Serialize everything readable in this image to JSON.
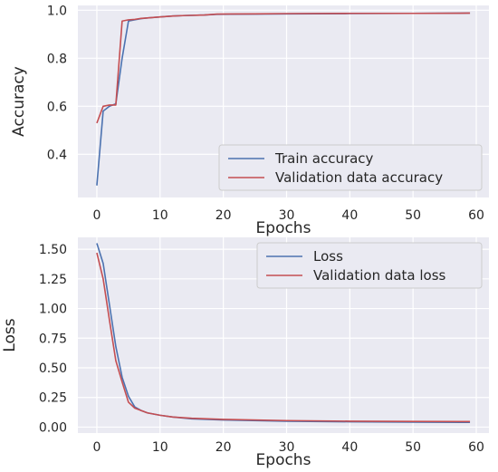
{
  "chart_data": [
    {
      "type": "line",
      "xlabel": "Epochs",
      "ylabel": "Accuracy",
      "xlim": [
        -3,
        62
      ],
      "ylim": [
        0.22,
        1.02
      ],
      "xticks": [
        0,
        10,
        20,
        30,
        40,
        50,
        60
      ],
      "yticks": [
        0.4,
        0.6,
        0.8,
        1.0
      ],
      "ytick_labels": [
        "0.4",
        "0.6",
        "0.8",
        "1.0"
      ],
      "grid": true,
      "legend_position": "lower-right",
      "series": [
        {
          "name": "Train accuracy",
          "color": "#4c72b0",
          "x": [
            0,
            1,
            2,
            3,
            4,
            5,
            6,
            7,
            8,
            10,
            12,
            14,
            17,
            19,
            25,
            30,
            40,
            50,
            59
          ],
          "y": [
            0.27,
            0.58,
            0.6,
            0.61,
            0.8,
            0.955,
            0.96,
            0.965,
            0.968,
            0.972,
            0.976,
            0.978,
            0.98,
            0.983,
            0.984,
            0.985,
            0.986,
            0.987,
            0.988
          ]
        },
        {
          "name": "Validation data accuracy",
          "color": "#c44e52",
          "x": [
            0,
            1,
            2,
            3,
            4,
            5,
            6,
            7,
            8,
            10,
            12,
            14,
            17,
            19,
            25,
            30,
            40,
            50,
            59
          ],
          "y": [
            0.53,
            0.6,
            0.605,
            0.605,
            0.955,
            0.96,
            0.962,
            0.966,
            0.968,
            0.972,
            0.976,
            0.978,
            0.98,
            0.984,
            0.985,
            0.986,
            0.987,
            0.987,
            0.988
          ]
        }
      ]
    },
    {
      "type": "line",
      "xlabel": "Epochs",
      "ylabel": "Loss",
      "xlim": [
        -3,
        62
      ],
      "ylim": [
        -0.05,
        1.6
      ],
      "xticks": [
        0,
        10,
        20,
        30,
        40,
        50,
        60
      ],
      "yticks": [
        0.0,
        0.25,
        0.5,
        0.75,
        1.0,
        1.25,
        1.5
      ],
      "ytick_labels": [
        "0.00",
        "0.25",
        "0.50",
        "0.75",
        "1.00",
        "1.25",
        "1.50"
      ],
      "grid": true,
      "legend_position": "upper-right",
      "series": [
        {
          "name": "Loss",
          "color": "#4c72b0",
          "x": [
            0,
            1,
            2,
            3,
            4,
            5,
            6,
            7,
            8,
            10,
            12,
            15,
            20,
            30,
            40,
            50,
            59
          ],
          "y": [
            1.55,
            1.38,
            1.03,
            0.68,
            0.42,
            0.26,
            0.17,
            0.14,
            0.12,
            0.1,
            0.085,
            0.07,
            0.06,
            0.05,
            0.045,
            0.042,
            0.04
          ]
        },
        {
          "name": "Validation data loss",
          "color": "#c44e52",
          "x": [
            0,
            1,
            2,
            3,
            4,
            5,
            6,
            7,
            8,
            10,
            12,
            15,
            20,
            30,
            40,
            50,
            59
          ],
          "y": [
            1.47,
            1.25,
            0.9,
            0.56,
            0.38,
            0.21,
            0.16,
            0.14,
            0.12,
            0.1,
            0.085,
            0.075,
            0.065,
            0.055,
            0.05,
            0.048,
            0.047
          ]
        }
      ]
    }
  ]
}
